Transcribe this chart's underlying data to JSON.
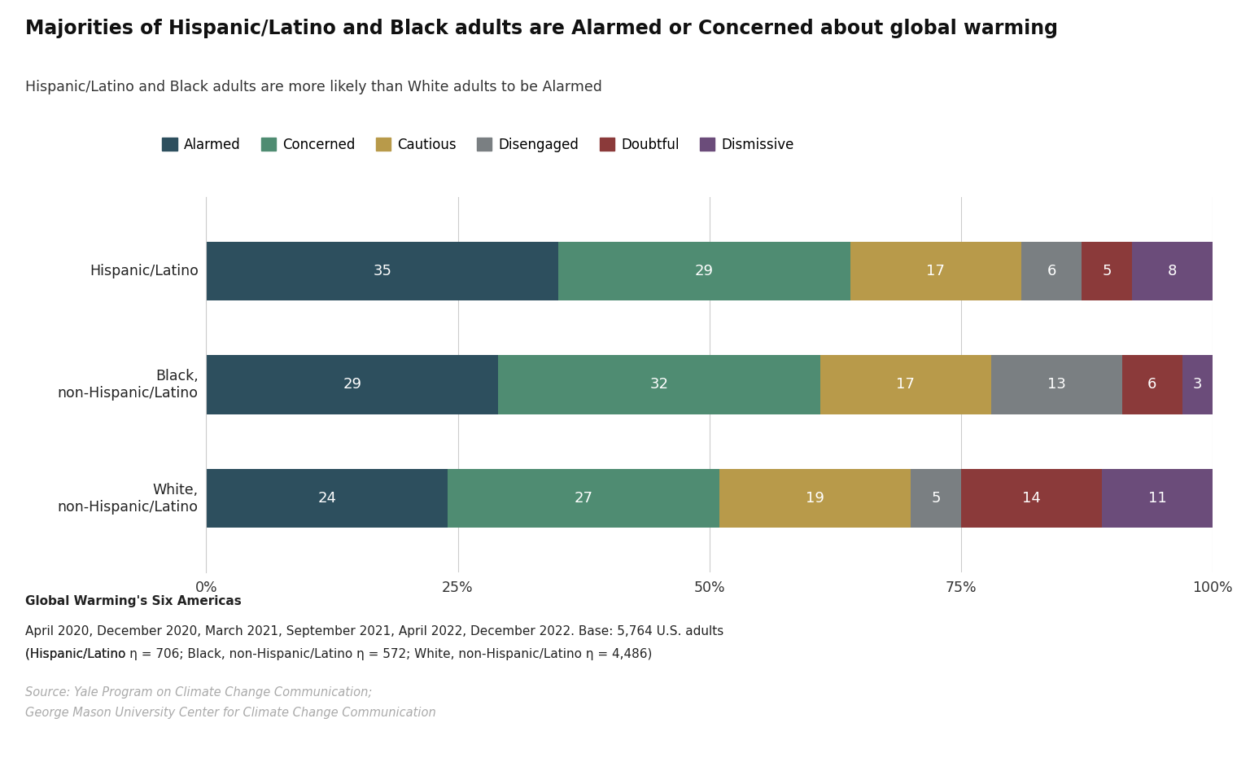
{
  "title": "Majorities of Hispanic/Latino and Black adults are Alarmed or Concerned about global warming",
  "subtitle": "Hispanic/Latino and Black adults are more likely than White adults to be Alarmed",
  "categories": [
    "Hispanic/Latino",
    "Black,\nnon-Hispanic/Latino",
    "White,\nnon-Hispanic/Latino"
  ],
  "segments": [
    "Alarmed",
    "Concerned",
    "Cautious",
    "Disengaged",
    "Doubtful",
    "Dismissive"
  ],
  "colors": [
    "#2d4f5e",
    "#4f8c72",
    "#b89a4a",
    "#7a7f82",
    "#8b3a3a",
    "#6b4c7a"
  ],
  "values": [
    [
      35,
      29,
      17,
      6,
      5,
      8
    ],
    [
      29,
      32,
      17,
      13,
      6,
      3
    ],
    [
      24,
      27,
      19,
      5,
      14,
      11
    ]
  ],
  "footnote_bold": "Global Warming's Six Americas",
  "footnote_line2a": "April 2020, December 2020, March 2021, September 2021, April 2022, December 2022. Base: 5,764 U.S. adults",
  "footnote_line2b": "(Hispanic/Latino n = 706; Black, non-Hispanic/Latino n = 572; White, non-Hispanic/Latino n = 4,486)",
  "footnote_source_line1": "Source: Yale Program on Climate Change Communication;",
  "footnote_source_line2": "George Mason University Center for Climate Change Communication",
  "background_color": "#ffffff",
  "bar_height": 0.52,
  "xlim": [
    0,
    100
  ],
  "xticks": [
    0,
    25,
    50,
    75,
    100
  ],
  "xticklabels": [
    "0%",
    "25%",
    "50%",
    "75%",
    "100%"
  ],
  "title_fontsize": 17,
  "subtitle_fontsize": 12.5,
  "legend_fontsize": 12,
  "label_fontsize": 13,
  "ytick_fontsize": 12.5,
  "xtick_fontsize": 12.5,
  "footnote_fontsize": 11,
  "source_fontsize": 10.5
}
